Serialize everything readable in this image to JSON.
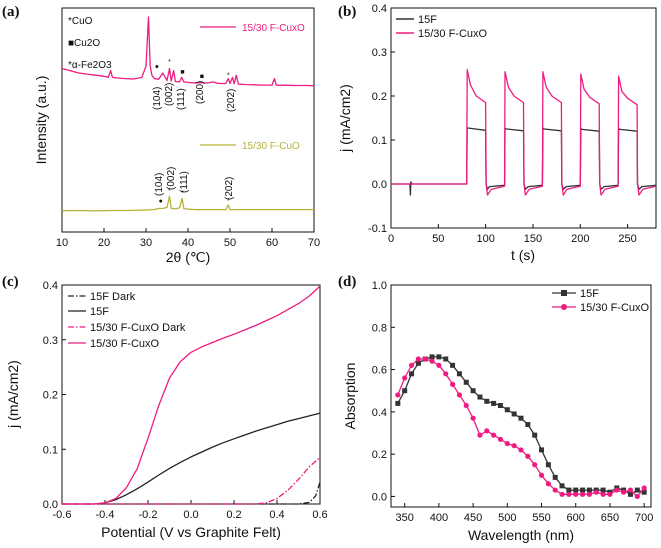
{
  "chart_data": [
    {
      "id": "a",
      "panel_label": "(a)",
      "type": "line",
      "title": "",
      "xlabel": "2θ (℃)",
      "ylabel": "Intensity (a.u.)",
      "xlim": [
        10,
        70
      ],
      "xticks": [
        "10",
        "20",
        "30",
        "40",
        "50",
        "60",
        "70"
      ],
      "ylim": [
        0,
        100
      ],
      "legend_left": [
        "*CuO",
        "■Cu2O",
        "*α-Fe2O3"
      ],
      "series": [
        {
          "name": "15/30 F-CuxO",
          "color": "#ee1c82",
          "x": [
            10,
            12,
            14,
            16,
            18,
            20,
            21,
            21.6,
            22,
            23,
            25,
            27,
            29,
            30,
            30.6,
            31.0,
            31.4,
            32,
            33,
            34,
            35,
            35.6,
            36,
            36.6,
            37,
            38,
            38.5,
            39,
            40,
            41,
            42,
            43,
            44,
            45,
            46,
            47,
            48,
            49,
            49.6,
            50,
            50.6,
            51,
            51.5,
            52,
            53,
            54,
            56,
            58,
            60,
            60.6,
            61,
            61.6,
            62,
            64,
            66,
            68,
            70
          ],
          "values": [
            73,
            72,
            71,
            70.5,
            70,
            69.5,
            69,
            72,
            69,
            68.8,
            68.5,
            68.3,
            69,
            74,
            96,
            74,
            70,
            68.5,
            68.2,
            71,
            67.6,
            73,
            67.4,
            72,
            67.2,
            67,
            69,
            67,
            66.8,
            66.6,
            66.6,
            66.7,
            66.5,
            66.6,
            67,
            66.4,
            66.3,
            66.3,
            68.5,
            66.3,
            69,
            66.2,
            70,
            66,
            65.9,
            65.8,
            65.7,
            65.6,
            65.6,
            68.5,
            65.6,
            65.5,
            65.5,
            65.5,
            65.4,
            65.4,
            65.3
          ]
        },
        {
          "name": "15/30 F-CuO",
          "color": "#b5b238",
          "x": [
            10,
            14,
            18,
            22,
            26,
            30,
            32,
            33,
            34,
            35,
            35.6,
            36,
            37,
            38,
            38.6,
            39,
            40,
            42,
            44,
            46,
            48,
            49,
            49.6,
            50,
            52,
            55,
            58,
            61,
            64,
            67,
            70
          ],
          "values": [
            9.5,
            9.6,
            9.4,
            9.6,
            9.6,
            9.8,
            10,
            10.5,
            10.5,
            11,
            16,
            10.6,
            10.3,
            10.8,
            15,
            10.5,
            10.2,
            10,
            10,
            10,
            10,
            10,
            12,
            10,
            10,
            10,
            10,
            10,
            10,
            10,
            10
          ]
        }
      ],
      "annotations_top": [
        "(104)",
        "(002)",
        "(111)",
        "(200)",
        "(202)"
      ],
      "annotations_bottom": [
        "(104)",
        "(002)",
        "(111)",
        "(202)"
      ]
    },
    {
      "id": "b",
      "panel_label": "(b)",
      "type": "line",
      "xlabel": "t (s)",
      "ylabel": "j (mA/cm2)",
      "xlim": [
        0,
        280
      ],
      "xticks": [
        "0",
        "50",
        "100",
        "150",
        "200",
        "250"
      ],
      "ylim": [
        -0.1,
        0.4
      ],
      "yticks": [
        "-0.1",
        "0.0",
        "0.1",
        "0.2",
        "0.3",
        "0.4"
      ],
      "series": [
        {
          "name": "15F",
          "color": "#333333",
          "x": [
            0,
            20,
            20.5,
            21,
            22,
            80,
            80.5,
            82,
            100,
            100.5,
            102,
            104,
            120,
            120.5,
            122,
            140,
            140.5,
            142,
            145,
            160,
            160.5,
            162,
            180,
            180.5,
            182,
            185,
            200,
            200.5,
            202,
            220,
            220.5,
            222,
            225,
            240,
            240.5,
            242,
            260,
            260.5,
            262,
            265,
            280
          ],
          "values": [
            0,
            0,
            -0.025,
            0.005,
            0,
            0,
            0.128,
            0.127,
            0.122,
            0,
            -0.012,
            -0.006,
            -0.003,
            0.127,
            0.125,
            0.121,
            0,
            -0.012,
            -0.006,
            -0.003,
            0.127,
            0.125,
            0.121,
            0,
            -0.012,
            -0.006,
            -0.003,
            0.126,
            0.124,
            0.12,
            0,
            -0.012,
            -0.006,
            -0.003,
            0.126,
            0.124,
            0.12,
            0,
            -0.012,
            -0.006,
            -0.003
          ]
        },
        {
          "name": "15/30 F-CuxO",
          "color": "#ee1c82",
          "x": [
            0,
            80,
            80.5,
            84,
            90,
            100,
            100.5,
            102,
            106,
            120,
            120.5,
            124,
            130,
            140,
            140.5,
            142,
            146,
            160,
            160.5,
            164,
            170,
            180,
            180.5,
            182,
            186,
            200,
            200.5,
            204,
            210,
            220,
            220.5,
            222,
            226,
            240,
            240.5,
            244,
            250,
            260,
            260.5,
            262,
            266,
            280
          ],
          "values": [
            0,
            0,
            0.26,
            0.225,
            0.2,
            0.185,
            0,
            -0.025,
            -0.012,
            -0.005,
            0.255,
            0.22,
            0.2,
            0.185,
            0,
            -0.025,
            -0.012,
            -0.005,
            0.255,
            0.22,
            0.2,
            0.185,
            0,
            -0.025,
            -0.012,
            -0.005,
            0.25,
            0.215,
            0.197,
            0.182,
            0,
            -0.025,
            -0.012,
            -0.005,
            0.245,
            0.21,
            0.195,
            0.18,
            0,
            -0.025,
            -0.012,
            -0.005
          ]
        }
      ]
    },
    {
      "id": "c",
      "panel_label": "(c)",
      "type": "line",
      "xlabel": "Potential (V vs Graphite Felt)",
      "ylabel": "j (mA/cm2)",
      "xlim": [
        -0.6,
        0.6
      ],
      "xticks": [
        "-0.6",
        "-0.4",
        "-0.2",
        "0.0",
        "0.2",
        "0.4",
        "0.6"
      ],
      "ylim": [
        0,
        0.4
      ],
      "yticks": [
        "0.0",
        "0.1",
        "0.2",
        "0.3",
        "0.4"
      ],
      "series": [
        {
          "name": "15F Dark",
          "color": "#222222",
          "dash": "6 2 1.5 2",
          "x": [
            -0.6,
            -0.2,
            0.2,
            0.5,
            0.55,
            0.58,
            0.6
          ],
          "values": [
            0,
            0,
            0,
            0,
            0.003,
            0.015,
            0.04
          ]
        },
        {
          "name": "15F",
          "color": "#222222",
          "x": [
            -0.6,
            -0.45,
            -0.4,
            -0.35,
            -0.3,
            -0.25,
            -0.2,
            -0.15,
            -0.1,
            -0.05,
            0,
            0.05,
            0.1,
            0.15,
            0.2,
            0.25,
            0.3,
            0.35,
            0.4,
            0.45,
            0.5,
            0.55,
            0.6
          ],
          "values": [
            0,
            0,
            0.002,
            0.008,
            0.017,
            0.028,
            0.04,
            0.053,
            0.065,
            0.076,
            0.086,
            0.095,
            0.104,
            0.112,
            0.119,
            0.126,
            0.133,
            0.139,
            0.145,
            0.151,
            0.156,
            0.161,
            0.166
          ]
        },
        {
          "name": "15/30 F-CuxO Dark",
          "color": "#ee1c82",
          "dash": "6 2 1.5 2",
          "x": [
            -0.6,
            0,
            0.3,
            0.35,
            0.4,
            0.45,
            0.5,
            0.55,
            0.6
          ],
          "values": [
            0,
            0,
            0,
            0.002,
            0.01,
            0.025,
            0.045,
            0.068,
            0.085
          ]
        },
        {
          "name": "15/30 F-CuxO",
          "color": "#ee1c82",
          "x": [
            -0.6,
            -0.45,
            -0.4,
            -0.35,
            -0.3,
            -0.25,
            -0.2,
            -0.15,
            -0.1,
            -0.05,
            0,
            0.05,
            0.1,
            0.15,
            0.2,
            0.25,
            0.3,
            0.35,
            0.4,
            0.45,
            0.5,
            0.55,
            0.6
          ],
          "values": [
            0,
            0,
            0.002,
            0.01,
            0.03,
            0.065,
            0.12,
            0.18,
            0.23,
            0.26,
            0.277,
            0.287,
            0.295,
            0.303,
            0.31,
            0.318,
            0.326,
            0.335,
            0.344,
            0.355,
            0.366,
            0.38,
            0.398
          ]
        }
      ]
    },
    {
      "id": "d",
      "panel_label": "(d)",
      "type": "line",
      "xlabel": "Wavelength (nm)",
      "ylabel": "Absorption",
      "xlim": [
        330,
        710
      ],
      "xticks": [
        "350",
        "400",
        "450",
        "500",
        "550",
        "600",
        "650",
        "700"
      ],
      "ylim": [
        -0.05,
        1.0
      ],
      "yticks": [
        "0.0",
        "0.2",
        "0.4",
        "0.6",
        "0.8",
        "1.0"
      ],
      "series": [
        {
          "name": "15F",
          "color": "#333333",
          "marker": "square",
          "x": [
            340,
            350,
            360,
            370,
            380,
            390,
            400,
            410,
            420,
            430,
            440,
            450,
            460,
            470,
            480,
            490,
            500,
            510,
            520,
            530,
            540,
            550,
            560,
            570,
            580,
            590,
            600,
            610,
            620,
            630,
            640,
            650,
            660,
            670,
            680,
            690,
            700
          ],
          "values": [
            0.44,
            0.5,
            0.58,
            0.63,
            0.65,
            0.66,
            0.66,
            0.65,
            0.62,
            0.58,
            0.54,
            0.5,
            0.47,
            0.45,
            0.44,
            0.43,
            0.41,
            0.39,
            0.37,
            0.34,
            0.29,
            0.22,
            0.15,
            0.09,
            0.05,
            0.03,
            0.03,
            0.03,
            0.03,
            0.03,
            0.03,
            0.02,
            0.04,
            0.03,
            0.01,
            0.03,
            0.02
          ]
        },
        {
          "name": "15/30 F-CuxO",
          "color": "#ee1c82",
          "marker": "circle",
          "x": [
            340,
            350,
            360,
            370,
            380,
            390,
            400,
            410,
            420,
            430,
            440,
            450,
            460,
            470,
            480,
            490,
            500,
            510,
            520,
            530,
            540,
            550,
            560,
            570,
            580,
            590,
            600,
            610,
            620,
            630,
            640,
            650,
            660,
            670,
            680,
            690,
            700
          ],
          "values": [
            0.48,
            0.56,
            0.62,
            0.65,
            0.65,
            0.64,
            0.62,
            0.58,
            0.53,
            0.48,
            0.43,
            0.37,
            0.29,
            0.31,
            0.29,
            0.27,
            0.25,
            0.24,
            0.22,
            0.19,
            0.15,
            0.1,
            0.06,
            0.03,
            0.01,
            0.01,
            0.01,
            0.01,
            0.01,
            0.02,
            0.01,
            0.01,
            0.03,
            0.02,
            0.03,
            0.0,
            0.04
          ]
        }
      ]
    }
  ]
}
